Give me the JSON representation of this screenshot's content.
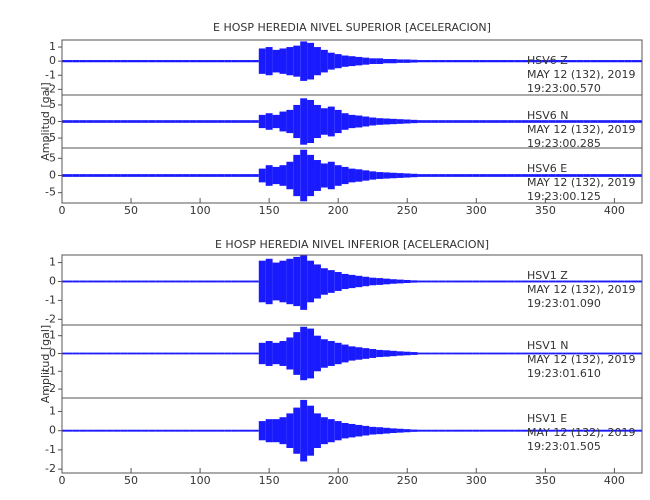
{
  "chart_data": [
    {
      "type": "line",
      "title": "E HOSP HEREDIA NIVEL SUPERIOR [ACELERACION]",
      "ylabel": "Amplitud [gal]",
      "xlim": [
        0,
        420
      ],
      "xticks": [
        0,
        50,
        100,
        150,
        200,
        250,
        300,
        350,
        400
      ],
      "x": [
        0,
        5,
        10,
        15,
        20,
        25,
        30,
        35,
        40,
        45,
        50,
        55,
        60,
        65,
        70,
        75,
        80,
        85,
        90,
        95,
        100,
        105,
        110,
        115,
        120,
        125,
        130,
        135,
        140,
        145,
        150,
        155,
        160,
        165,
        170,
        175,
        180,
        185,
        190,
        195,
        200,
        205,
        210,
        215,
        220,
        225,
        230,
        235,
        240,
        245,
        250,
        255,
        260,
        265,
        270,
        275,
        280,
        285,
        290,
        295,
        300,
        305,
        310,
        315,
        320,
        325,
        330,
        335,
        340,
        345,
        350,
        355,
        360,
        365,
        370,
        375,
        380,
        385,
        390,
        395,
        400,
        405,
        410,
        415,
        420
      ],
      "series": [
        {
          "name": "HSV6   Z",
          "date": "MAY 12 (132), 2019",
          "time": "19:23:00.570",
          "color": "#1a1aff",
          "ylim": [
            -2.4,
            1.5
          ],
          "yticks": [
            1,
            0,
            -1,
            -2
          ],
          "values": [
            0.08,
            0.08,
            0.08,
            0.08,
            0.08,
            0.08,
            0.08,
            0.08,
            0.08,
            0.08,
            0.08,
            0.08,
            0.08,
            0.08,
            0.08,
            0.08,
            0.08,
            0.08,
            0.08,
            0.08,
            0.08,
            0.08,
            0.08,
            0.08,
            0.08,
            0.08,
            0.08,
            0.08,
            0.08,
            0.9,
            1.0,
            0.8,
            0.9,
            1.0,
            1.1,
            1.4,
            1.3,
            1.0,
            0.8,
            0.6,
            0.5,
            0.4,
            0.35,
            0.3,
            0.25,
            0.2,
            0.2,
            0.15,
            0.15,
            0.12,
            0.12,
            0.1,
            0.08,
            0.08,
            0.08,
            0.08,
            0.08,
            0.08,
            0.08,
            0.08,
            0.08,
            0.08,
            0.08,
            0.08,
            0.08,
            0.08,
            0.08,
            0.08,
            0.08,
            0.08,
            0.08,
            0.08,
            0.08,
            0.08,
            0.08,
            0.08,
            0.08,
            0.08,
            0.08,
            0.08,
            0.08,
            0.08,
            0.08,
            0.08,
            0.08
          ]
        },
        {
          "name": "HSV6   N",
          "date": "MAY 12 (132), 2019",
          "time": "19:23:00.285",
          "color": "#1a1aff",
          "ylim": [
            -8,
            8
          ],
          "yticks": [
            5,
            0,
            -5
          ],
          "values": [
            0.4,
            0.4,
            0.4,
            0.4,
            0.4,
            0.4,
            0.4,
            0.4,
            0.4,
            0.4,
            0.4,
            0.4,
            0.4,
            0.4,
            0.4,
            0.4,
            0.4,
            0.4,
            0.4,
            0.4,
            0.4,
            0.4,
            0.4,
            0.4,
            0.4,
            0.4,
            0.4,
            0.4,
            0.4,
            2,
            2.5,
            2,
            3,
            3.5,
            5,
            7,
            6.5,
            5,
            4,
            4.5,
            3.5,
            2.5,
            2,
            1.8,
            1.5,
            1.2,
            1,
            0.9,
            0.8,
            0.7,
            0.6,
            0.5,
            0.4,
            0.4,
            0.4,
            0.4,
            0.4,
            0.4,
            0.4,
            0.4,
            0.4,
            0.4,
            0.4,
            0.4,
            0.4,
            0.4,
            0.4,
            0.4,
            0.4,
            0.4,
            0.4,
            0.4,
            0.4,
            0.4,
            0.4,
            0.4,
            0.4,
            0.4,
            0.4,
            0.4,
            0.4,
            0.4,
            0.4,
            0.4,
            0.4
          ]
        },
        {
          "name": "HSV6   E",
          "date": "MAY 12 (132), 2019",
          "time": "19:23:00.125",
          "color": "#1a1aff",
          "ylim": [
            -8,
            8
          ],
          "yticks": [
            5,
            0,
            -5
          ],
          "values": [
            0.4,
            0.4,
            0.4,
            0.4,
            0.4,
            0.4,
            0.4,
            0.4,
            0.4,
            0.4,
            0.4,
            0.4,
            0.4,
            0.4,
            0.4,
            0.4,
            0.4,
            0.4,
            0.4,
            0.4,
            0.4,
            0.4,
            0.4,
            0.4,
            0.4,
            0.4,
            0.4,
            0.4,
            0.4,
            2,
            3,
            2.5,
            3,
            4,
            6,
            7.5,
            6,
            4.5,
            3.5,
            4,
            3,
            2.5,
            2,
            1.8,
            1.5,
            1.2,
            1,
            0.9,
            0.8,
            0.7,
            0.6,
            0.5,
            0.4,
            0.4,
            0.4,
            0.4,
            0.4,
            0.4,
            0.4,
            0.4,
            0.4,
            0.4,
            0.4,
            0.4,
            0.4,
            0.4,
            0.4,
            0.4,
            0.4,
            0.4,
            0.4,
            0.4,
            0.4,
            0.4,
            0.4,
            0.4,
            0.4,
            0.4,
            0.4,
            0.4,
            0.4,
            0.4,
            0.4,
            0.4,
            0.4
          ]
        }
      ]
    },
    {
      "type": "line",
      "title": "E HOSP HEREDIA NIVEL INFERIOR [ACELERACION]",
      "ylabel": "Amplitud [gal]",
      "xlim": [
        0,
        420
      ],
      "xticks": [
        0,
        50,
        100,
        150,
        200,
        250,
        300,
        350,
        400
      ],
      "x": [
        0,
        5,
        10,
        15,
        20,
        25,
        30,
        35,
        40,
        45,
        50,
        55,
        60,
        65,
        70,
        75,
        80,
        85,
        90,
        95,
        100,
        105,
        110,
        115,
        120,
        125,
        130,
        135,
        140,
        145,
        150,
        155,
        160,
        165,
        170,
        175,
        180,
        185,
        190,
        195,
        200,
        205,
        210,
        215,
        220,
        225,
        230,
        235,
        240,
        245,
        250,
        255,
        260,
        265,
        270,
        275,
        280,
        285,
        290,
        295,
        300,
        305,
        310,
        315,
        320,
        325,
        330,
        335,
        340,
        345,
        350,
        355,
        360,
        365,
        370,
        375,
        380,
        385,
        390,
        395,
        400,
        405,
        410,
        415,
        420
      ],
      "series": [
        {
          "name": "HSV1   Z",
          "date": "MAY 12 (132), 2019",
          "time": "19:23:01.090",
          "color": "#1a1aff",
          "ylim": [
            -2.3,
            1.4
          ],
          "yticks": [
            1,
            0,
            -1,
            -2
          ],
          "values": [
            0.05,
            0.05,
            0.05,
            0.05,
            0.05,
            0.05,
            0.05,
            0.05,
            0.05,
            0.05,
            0.05,
            0.05,
            0.05,
            0.05,
            0.05,
            0.05,
            0.05,
            0.05,
            0.05,
            0.05,
            0.05,
            0.05,
            0.05,
            0.05,
            0.05,
            0.05,
            0.05,
            0.05,
            0.05,
            1.1,
            1.2,
            1,
            1.1,
            1.2,
            1.3,
            1.5,
            1.1,
            0.9,
            0.7,
            0.6,
            0.5,
            0.4,
            0.35,
            0.3,
            0.25,
            0.2,
            0.18,
            0.15,
            0.12,
            0.1,
            0.08,
            0.06,
            0.05,
            0.05,
            0.05,
            0.05,
            0.05,
            0.05,
            0.05,
            0.05,
            0.05,
            0.05,
            0.05,
            0.05,
            0.05,
            0.05,
            0.05,
            0.05,
            0.05,
            0.05,
            0.05,
            0.05,
            0.05,
            0.05,
            0.05,
            0.05,
            0.05,
            0.05,
            0.05,
            0.05,
            0.05,
            0.05,
            0.05,
            0.05,
            0.05
          ]
        },
        {
          "name": "HSV1   N",
          "date": "MAY 12 (132), 2019",
          "time": "19:23:01.610",
          "color": "#1a1aff",
          "ylim": [
            -2.5,
            1.6
          ],
          "yticks": [
            1,
            0,
            -1,
            -2
          ],
          "values": [
            0.05,
            0.05,
            0.05,
            0.05,
            0.05,
            0.05,
            0.05,
            0.05,
            0.05,
            0.05,
            0.05,
            0.05,
            0.05,
            0.05,
            0.05,
            0.05,
            0.05,
            0.05,
            0.05,
            0.05,
            0.05,
            0.05,
            0.05,
            0.05,
            0.05,
            0.05,
            0.05,
            0.05,
            0.05,
            0.6,
            0.7,
            0.6,
            0.7,
            0.9,
            1.2,
            1.5,
            1.4,
            1,
            0.8,
            0.7,
            0.6,
            0.5,
            0.4,
            0.35,
            0.3,
            0.25,
            0.2,
            0.18,
            0.15,
            0.12,
            0.1,
            0.08,
            0.05,
            0.05,
            0.05,
            0.05,
            0.05,
            0.05,
            0.05,
            0.05,
            0.05,
            0.05,
            0.05,
            0.05,
            0.05,
            0.05,
            0.05,
            0.05,
            0.05,
            0.05,
            0.05,
            0.05,
            0.05,
            0.05,
            0.05,
            0.05,
            0.05,
            0.05,
            0.05,
            0.05,
            0.05,
            0.05,
            0.05,
            0.05,
            0.05
          ]
        },
        {
          "name": "HSV1   E",
          "date": "MAY 12 (132), 2019",
          "time": "19:23:01.505",
          "color": "#1a1aff",
          "ylim": [
            -2.2,
            1.7
          ],
          "yticks": [
            1,
            0,
            -1,
            -2
          ],
          "values": [
            0.05,
            0.05,
            0.05,
            0.05,
            0.05,
            0.05,
            0.05,
            0.05,
            0.05,
            0.05,
            0.05,
            0.05,
            0.05,
            0.05,
            0.05,
            0.05,
            0.05,
            0.05,
            0.05,
            0.05,
            0.05,
            0.05,
            0.05,
            0.05,
            0.05,
            0.05,
            0.05,
            0.05,
            0.05,
            0.5,
            0.6,
            0.6,
            0.7,
            0.9,
            1.2,
            1.6,
            1.3,
            0.9,
            0.7,
            0.6,
            0.5,
            0.4,
            0.35,
            0.3,
            0.25,
            0.2,
            0.18,
            0.15,
            0.12,
            0.1,
            0.08,
            0.06,
            0.05,
            0.05,
            0.05,
            0.05,
            0.05,
            0.05,
            0.05,
            0.05,
            0.05,
            0.05,
            0.05,
            0.05,
            0.05,
            0.05,
            0.05,
            0.05,
            0.05,
            0.05,
            0.05,
            0.05,
            0.05,
            0.05,
            0.05,
            0.05,
            0.05,
            0.05,
            0.05,
            0.05,
            0.05,
            0.05,
            0.05,
            0.05,
            0.05
          ]
        }
      ]
    }
  ]
}
